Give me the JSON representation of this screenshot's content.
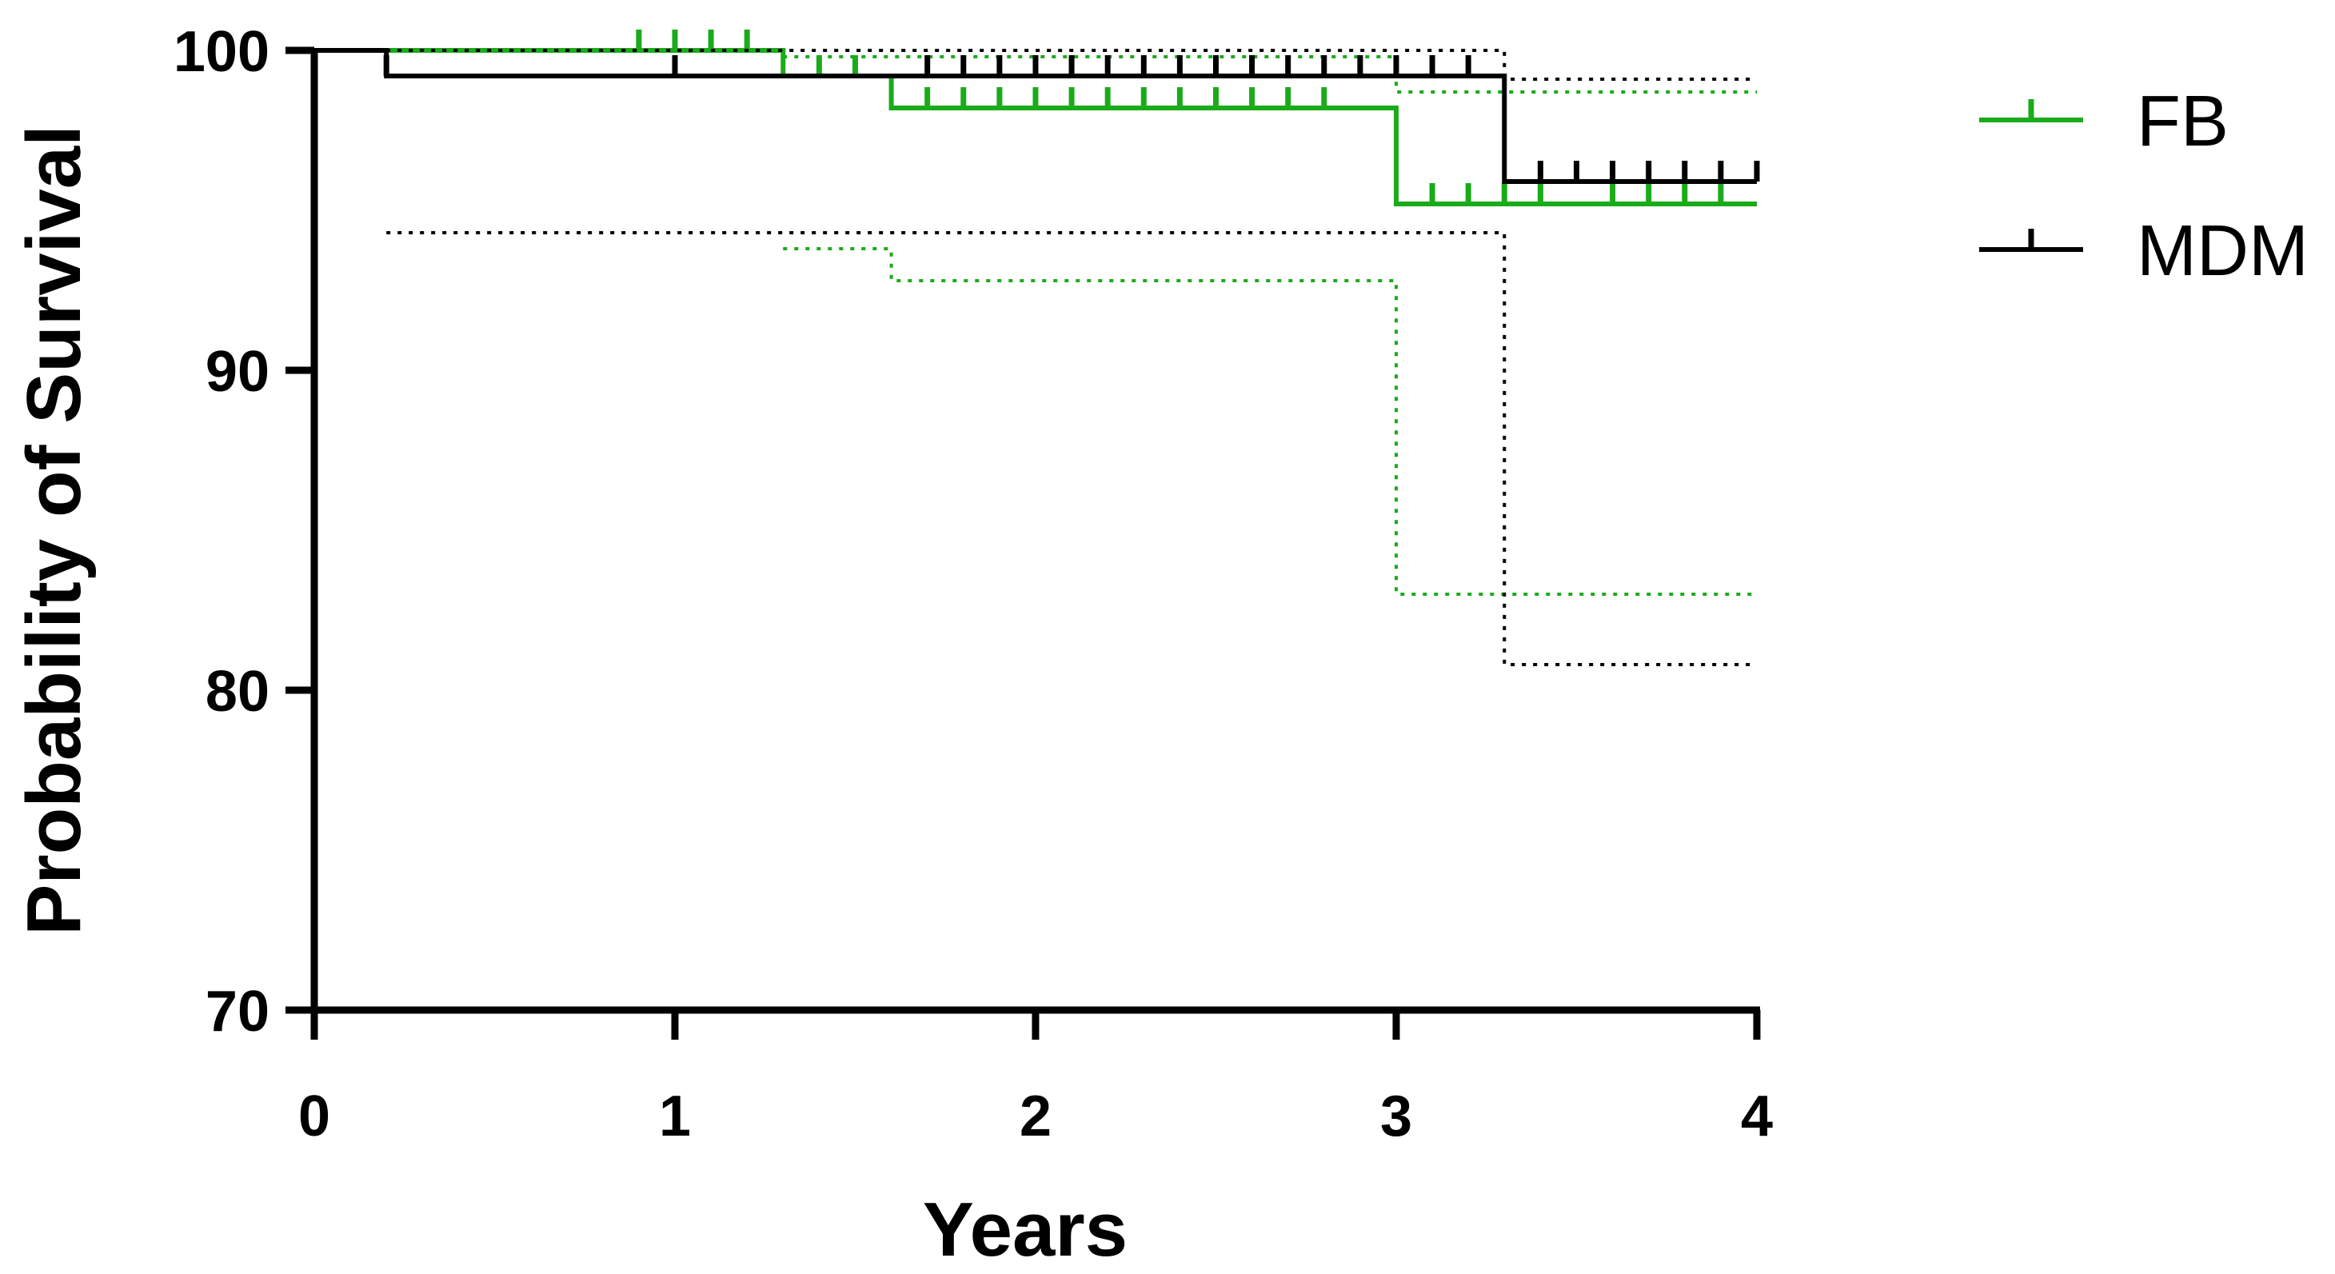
{
  "chart_data": {
    "type": "line",
    "subtype": "kaplan-meier survival curve with confidence bands and censor ticks",
    "title": "",
    "xlabel": "Years",
    "ylabel": "Probability of Survival",
    "xlim": [
      0,
      4
    ],
    "ylim": [
      70,
      100
    ],
    "x_ticks": [
      "0",
      "1",
      "2",
      "3",
      "4"
    ],
    "y_ticks": [
      "70",
      "80",
      "90",
      "100"
    ],
    "grid": false,
    "legend_position": "top-right",
    "series": [
      {
        "name": "FB",
        "color": "#1aab1a",
        "steps": [
          [
            0,
            100
          ],
          [
            1.3,
            99.2
          ],
          [
            1.6,
            98.2
          ],
          [
            3.0,
            95.2
          ],
          [
            4.0,
            95.2
          ]
        ],
        "censor_x": [
          0.9,
          1.0,
          1.1,
          1.2,
          1.4,
          1.5,
          1.7,
          1.8,
          1.9,
          2.0,
          2.1,
          2.2,
          2.3,
          2.4,
          2.5,
          2.6,
          2.7,
          2.8,
          3.1,
          3.2,
          3.3,
          3.4,
          3.6,
          3.7,
          3.8,
          3.9
        ],
        "ci_upper": [
          [
            1.3,
            99.8
          ],
          [
            1.6,
            99.8
          ],
          [
            3.0,
            98.7
          ],
          [
            4.0,
            98.7
          ]
        ],
        "ci_lower": [
          [
            1.3,
            93.8
          ],
          [
            1.6,
            92.8
          ],
          [
            3.0,
            83.0
          ],
          [
            4.0,
            83.0
          ]
        ]
      },
      {
        "name": "MDM",
        "color": "#000000",
        "steps": [
          [
            0,
            100
          ],
          [
            0.2,
            99.2
          ],
          [
            3.3,
            95.9
          ],
          [
            4.0,
            95.9
          ]
        ],
        "censor_x": [
          0.2,
          1.0,
          1.7,
          1.8,
          1.9,
          2.0,
          2.1,
          2.2,
          2.3,
          2.4,
          2.5,
          2.6,
          2.7,
          2.8,
          2.9,
          3.0,
          3.1,
          3.2,
          3.4,
          3.5,
          3.6,
          3.7,
          3.8,
          3.9,
          4.0
        ],
        "ci_upper": [
          [
            0.2,
            100
          ],
          [
            3.3,
            99.1
          ],
          [
            4.0,
            99.1
          ]
        ],
        "ci_lower": [
          [
            0.2,
            94.3
          ],
          [
            3.3,
            80.8
          ],
          [
            4.0,
            80.8
          ]
        ]
      }
    ]
  }
}
